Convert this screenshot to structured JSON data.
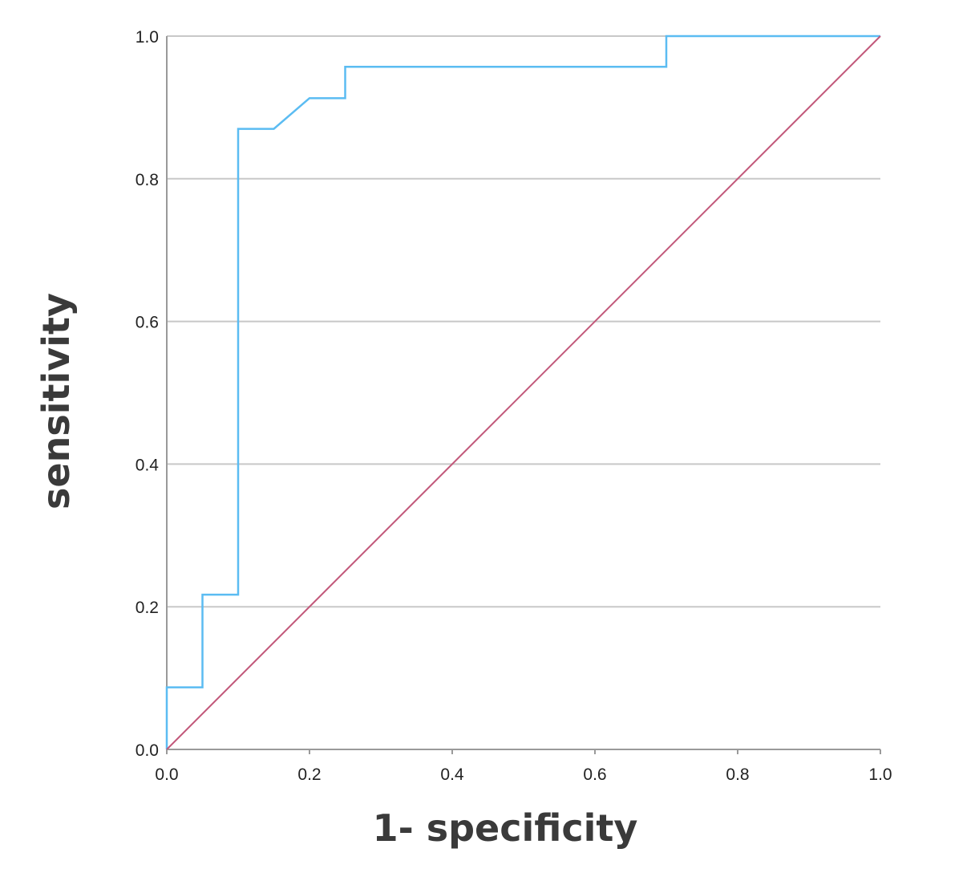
{
  "chart_data": {
    "type": "line",
    "title": "",
    "xlabel": "1- specificity",
    "ylabel": "sensitivity",
    "xlim": [
      0.0,
      1.0
    ],
    "ylim": [
      0.0,
      1.0
    ],
    "x_ticks": [
      "0.0",
      "0.2",
      "0.4",
      "0.6",
      "0.8",
      "1.0"
    ],
    "y_ticks": [
      "0.0",
      "0.2",
      "0.4",
      "0.6",
      "0.8",
      "1.0"
    ],
    "grid": "horizontal",
    "legend": "none",
    "series": [
      {
        "style": "step",
        "color": "#5bbcf2",
        "x": [
          0.0,
          0.0,
          0.05,
          0.05,
          0.1,
          0.1,
          0.15,
          0.2,
          0.25,
          0.25,
          0.7,
          0.7,
          1.0
        ],
        "y": [
          0.0,
          0.087,
          0.087,
          0.217,
          0.217,
          0.87,
          0.87,
          0.913,
          0.913,
          0.957,
          0.957,
          1.0,
          1.0
        ]
      },
      {
        "style": "reference-diagonal",
        "color": "#c2587a",
        "x": [
          0.0,
          1.0
        ],
        "y": [
          0.0,
          1.0
        ]
      }
    ]
  }
}
